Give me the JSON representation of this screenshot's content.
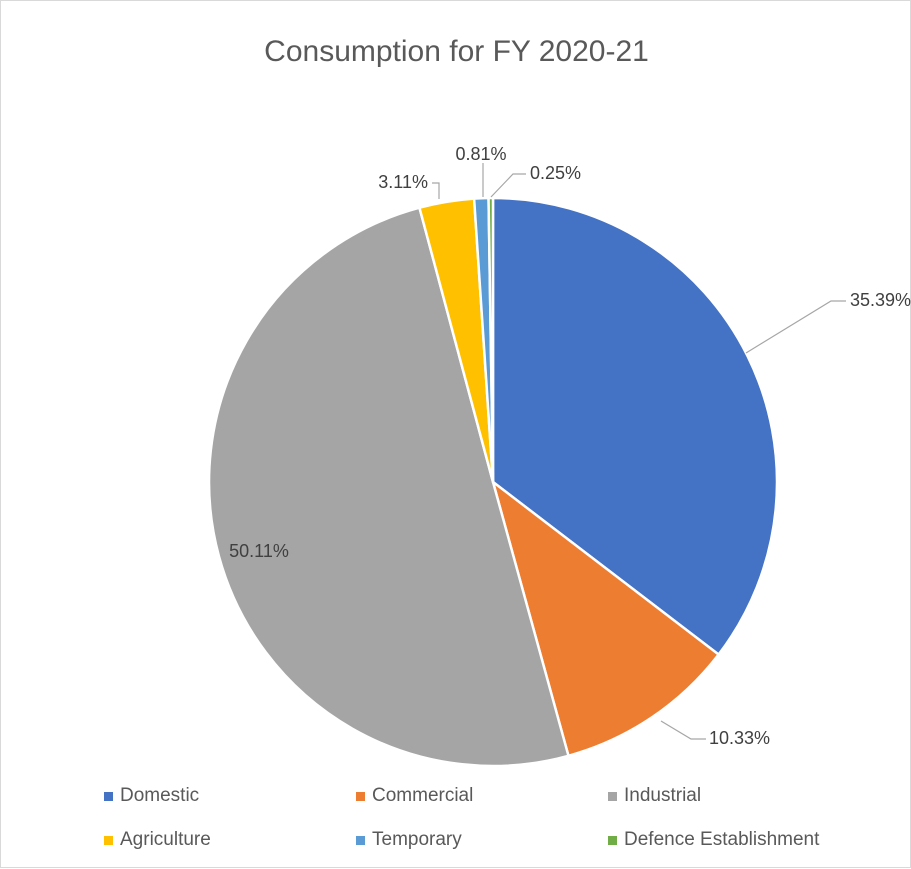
{
  "chart_data": {
    "type": "pie",
    "title": "Consumption for FY 2020-21",
    "slices": [
      {
        "label": "Domestic",
        "value": 35.39,
        "display": "35.39%",
        "color": "#4472c4"
      },
      {
        "label": "Commercial",
        "value": 10.33,
        "display": "10.33%",
        "color": "#ed7d31"
      },
      {
        "label": "Industrial",
        "value": 50.11,
        "display": "50.11%",
        "color": "#a5a5a5"
      },
      {
        "label": "Agriculture",
        "value": 3.11,
        "display": "3.11%",
        "color": "#ffc000"
      },
      {
        "label": "Temporary",
        "value": 0.81,
        "display": "0.81%",
        "color": "#5b9bd5"
      },
      {
        "label": "Defence Establishment",
        "value": 0.25,
        "display": "0.25%",
        "color": "#70ad47"
      }
    ],
    "legend_position": "bottom"
  }
}
